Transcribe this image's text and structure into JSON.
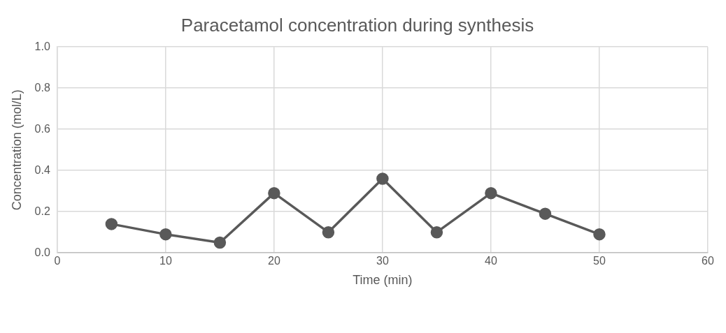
{
  "chart_data": {
    "type": "line",
    "title": "Paracetamol concentration during synthesis",
    "xlabel": "Time (min)",
    "ylabel": "Concentration (mol/L)",
    "x": [
      5,
      10,
      15,
      20,
      25,
      30,
      35,
      40,
      45,
      50
    ],
    "series": [
      {
        "color": "#595959",
        "values": [
          0.14,
          0.09,
          0.05,
          0.29,
          0.1,
          0.36,
          0.1,
          0.29,
          0.19,
          0.09
        ]
      }
    ],
    "xlim": [
      0,
      60
    ],
    "xticks": [
      0,
      10,
      20,
      30,
      40,
      50,
      60
    ],
    "ylim": [
      0,
      1
    ],
    "yticks": [
      {
        "value": 0,
        "label": "0.0"
      },
      {
        "value": 0.2,
        "label": "0.2"
      },
      {
        "value": 0.4,
        "label": "0.4"
      },
      {
        "value": 0.6,
        "label": "0.6"
      },
      {
        "value": 0.8,
        "label": "0.8"
      },
      {
        "value": 1,
        "label": "1.0"
      }
    ],
    "grid": true,
    "legend": false,
    "marker": "circle",
    "line_style": "solid"
  }
}
